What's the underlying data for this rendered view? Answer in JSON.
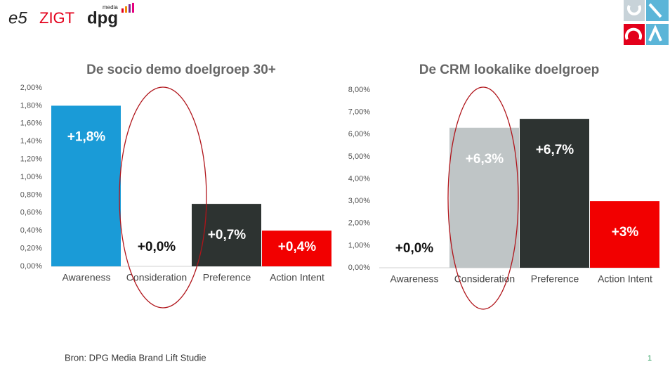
{
  "header": {
    "logos": [
      "e5",
      "ZIGT",
      "dpg",
      "media"
    ]
  },
  "chart_data": [
    {
      "type": "bar",
      "title": "De socio demo doelgroep 30+",
      "categories": [
        "Awareness",
        "Consideration",
        "Preference",
        "Action Intent"
      ],
      "values": [
        1.8,
        0,
        0.7,
        0.4
      ],
      "value_labels": [
        "+1,8%",
        "+0,0%",
        "+0,7%",
        "+0,4%"
      ],
      "colors": [
        "#1a9bd7",
        "#bfc5c6",
        "#2d3331",
        "#f20000"
      ],
      "ylim": [
        0,
        2
      ],
      "yticks": [
        {
          "value": 0,
          "label": "0,00%"
        },
        {
          "value": 0.2,
          "label": "0,20%"
        },
        {
          "value": 0.4,
          "label": "0,40%"
        },
        {
          "value": 0.6,
          "label": "0,60%"
        },
        {
          "value": 0.8,
          "label": "0,80%"
        },
        {
          "value": 1,
          "label": "1,00%"
        },
        {
          "value": 1.2,
          "label": "1,20%"
        },
        {
          "value": 1.4,
          "label": "1,40%"
        },
        {
          "value": 1.6,
          "label": "1,60%"
        },
        {
          "value": 1.8,
          "label": "1,80%"
        },
        {
          "value": 2,
          "label": "2,00%"
        }
      ]
    },
    {
      "type": "bar",
      "title": "De CRM lookalike doelgroep",
      "categories": [
        "Awareness",
        "Consideration",
        "Preference",
        "Action Intent"
      ],
      "values": [
        0,
        6.3,
        6.7,
        3
      ],
      "value_labels": [
        "+0,0%",
        "+6,3%",
        "+6,7%",
        "+3%"
      ],
      "colors": [
        "#1a9bd7",
        "#bfc5c6",
        "#2d3331",
        "#f20000"
      ],
      "ylim": [
        0,
        8
      ],
      "yticks": [
        {
          "value": 0,
          "label": "0,00%"
        },
        {
          "value": 1,
          "label": "1,00%"
        },
        {
          "value": 2,
          "label": "2,00%"
        },
        {
          "value": 3,
          "label": "3,00%"
        },
        {
          "value": 4,
          "label": "4,00%"
        },
        {
          "value": 5,
          "label": "5,00%"
        },
        {
          "value": 6,
          "label": "6,00%"
        },
        {
          "value": 7,
          "label": "7,00%"
        },
        {
          "value": 8,
          "label": "8,00%"
        }
      ]
    }
  ],
  "footer": {
    "source": "Bron: DPG Media Brand Lift Studie",
    "page": "1"
  }
}
